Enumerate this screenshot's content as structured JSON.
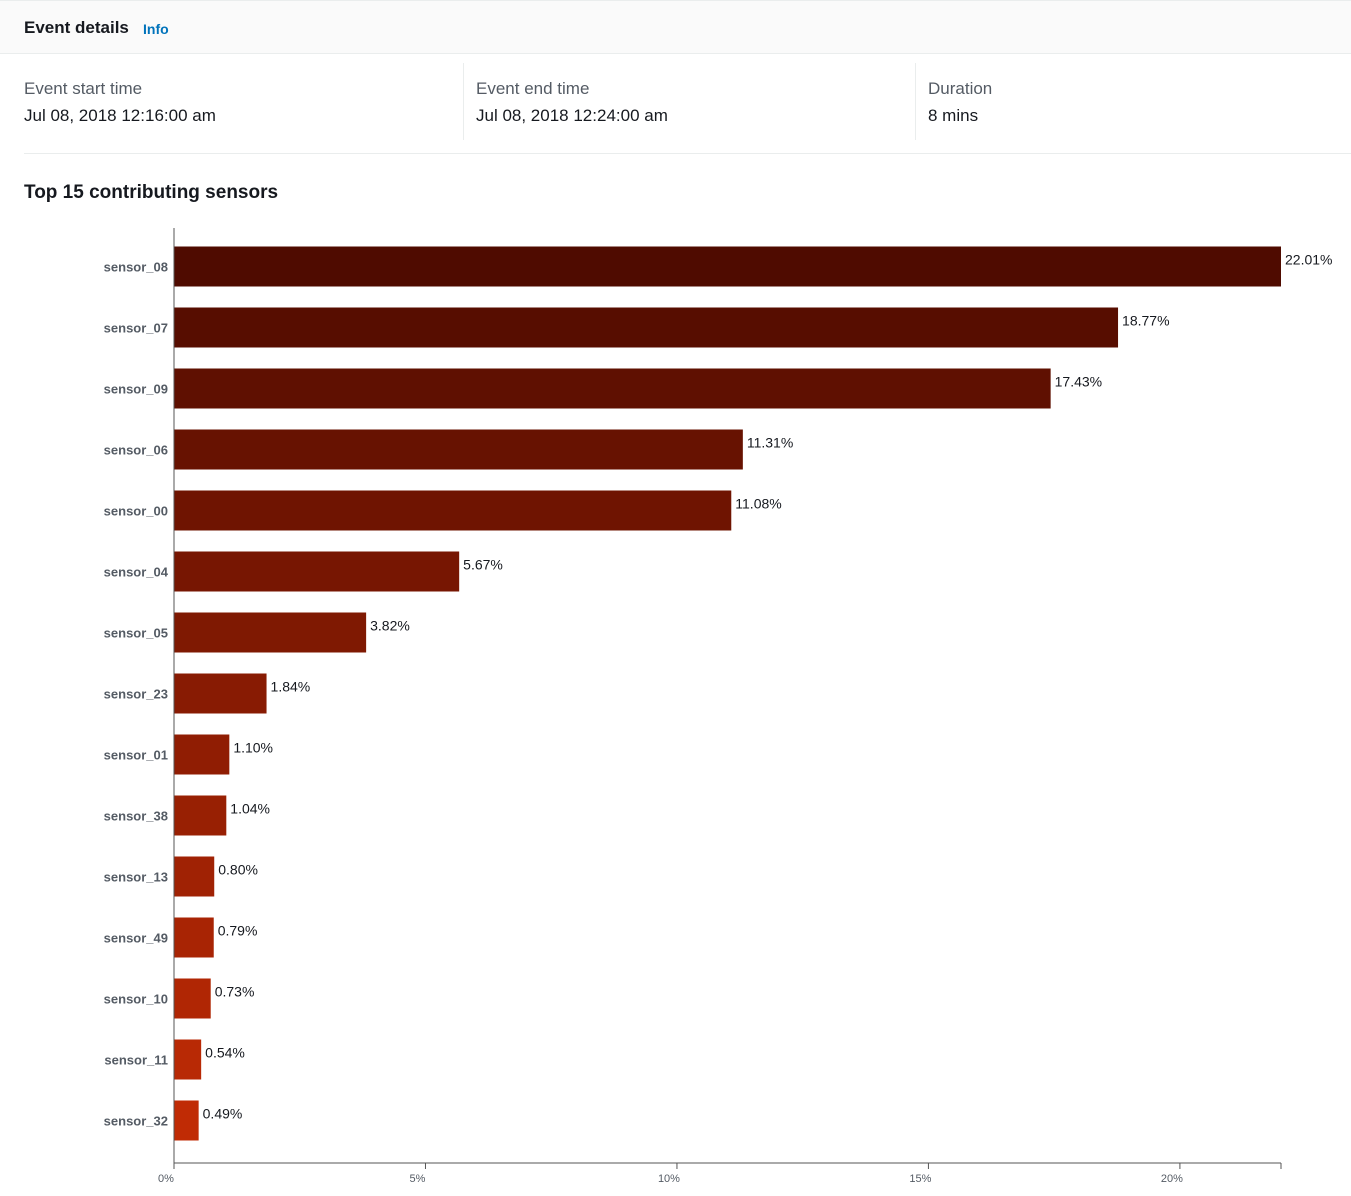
{
  "header": {
    "title": "Event details",
    "info_link": "Info"
  },
  "details": {
    "start": {
      "label": "Event start time",
      "value": "Jul 08, 2018 12:16:00 am"
    },
    "end": {
      "label": "Event end time",
      "value": "Jul 08, 2018 12:24:00 am"
    },
    "duration": {
      "label": "Duration",
      "value": "8 mins"
    }
  },
  "colors": {
    "bar_darkest": "#4f0b00",
    "bar_lightest": "#c02b05",
    "axis": "#555555",
    "link": "#0073bb"
  },
  "chart_data": {
    "type": "bar",
    "orientation": "horizontal",
    "title": "Top 15 contributing sensors",
    "categories": [
      "sensor_08",
      "sensor_07",
      "sensor_09",
      "sensor_06",
      "sensor_00",
      "sensor_04",
      "sensor_05",
      "sensor_23",
      "sensor_01",
      "sensor_38",
      "sensor_13",
      "sensor_49",
      "sensor_10",
      "sensor_11",
      "sensor_32"
    ],
    "values": [
      22.01,
      18.77,
      17.43,
      11.31,
      11.08,
      5.67,
      3.82,
      1.84,
      1.1,
      1.04,
      0.8,
      0.79,
      0.73,
      0.54,
      0.49
    ],
    "value_labels": [
      "22.01%",
      "18.77%",
      "17.43%",
      "11.31%",
      "11.08%",
      "5.67%",
      "3.82%",
      "1.84%",
      "1.10%",
      "1.04%",
      "0.80%",
      "0.79%",
      "0.73%",
      "0.54%",
      "0.49%"
    ],
    "xlim": [
      0,
      22.01
    ],
    "x_ticks": [
      0,
      5,
      10,
      15,
      20
    ],
    "x_tick_labels": [
      "0%",
      "5%",
      "10%",
      "15%",
      "20%"
    ],
    "grid": false,
    "legend": "none"
  }
}
